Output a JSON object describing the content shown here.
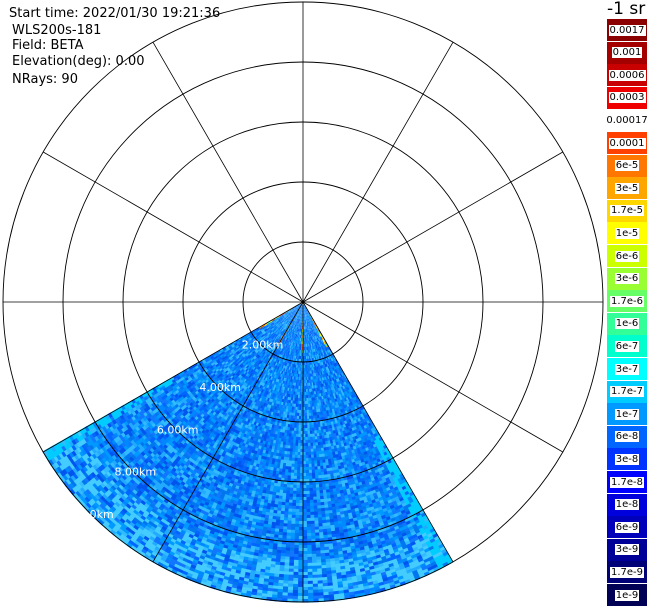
{
  "info": {
    "start_time": "Start time: 2022/01/30 19:21:36",
    "instrument": "WLS200s-181",
    "field": "Field: BETA",
    "elevation": "Elevation(deg): 0.00",
    "nrays": "NRays: 90"
  },
  "colorbar": {
    "unit": "-1 sr",
    "entries": [
      {
        "label": "0.0017",
        "color": "#8b0000",
        "text": "#ffffff"
      },
      {
        "label": "0.001",
        "color": "#a50000",
        "text": "#ffffff"
      },
      {
        "label": "0.0006",
        "color": "#c80000",
        "text": "#ffffff"
      },
      {
        "label": "0.0003",
        "color": "#ee0000",
        "text": "#ffffff"
      },
      {
        "label": "0.00017",
        "color": "#ffffff",
        "text": "#000000"
      },
      {
        "label": "0.0001",
        "color": "#ff4000",
        "text": "#ffffff"
      },
      {
        "label": "6e-5",
        "color": "#ff7700",
        "text": "#000000"
      },
      {
        "label": "3e-5",
        "color": "#ffa500",
        "text": "#000000"
      },
      {
        "label": "1.7e-5",
        "color": "#ffd700",
        "text": "#000000"
      },
      {
        "label": "1e-5",
        "color": "#ffff00",
        "text": "#000000"
      },
      {
        "label": "6e-6",
        "color": "#ccff00",
        "text": "#000000"
      },
      {
        "label": "3e-6",
        "color": "#99ff33",
        "text": "#000000"
      },
      {
        "label": "1.7e-6",
        "color": "#66ff66",
        "text": "#000000"
      },
      {
        "label": "1e-6",
        "color": "#33ff99",
        "text": "#000000"
      },
      {
        "label": "6e-7",
        "color": "#00ffcc",
        "text": "#000000"
      },
      {
        "label": "3e-7",
        "color": "#00ffff",
        "text": "#000000"
      },
      {
        "label": "1.7e-7",
        "color": "#00ccff",
        "text": "#000000"
      },
      {
        "label": "1e-7",
        "color": "#0099ff",
        "text": "#000000"
      },
      {
        "label": "6e-8",
        "color": "#0066ff",
        "text": "#ffffff"
      },
      {
        "label": "3e-8",
        "color": "#0033ff",
        "text": "#ffffff"
      },
      {
        "label": "1.7e-8",
        "color": "#0000ff",
        "text": "#ffffff"
      },
      {
        "label": "1e-8",
        "color": "#0000dd",
        "text": "#ffffff"
      },
      {
        "label": "6e-9",
        "color": "#0000bb",
        "text": "#ffffff"
      },
      {
        "label": "3e-9",
        "color": "#000099",
        "text": "#ffffff"
      },
      {
        "label": "1.7e-9",
        "color": "#000077",
        "text": "#ffffff"
      },
      {
        "label": "1e-9",
        "color": "#000055",
        "text": "#ffffff"
      }
    ]
  },
  "chart_data": {
    "type": "heatmap",
    "projection": "polar PPI",
    "max_range_km": 10,
    "range_rings_km": [
      2,
      4,
      6,
      8,
      10
    ],
    "ring_labels": [
      "2.00km",
      "4.00km",
      "6.00km",
      "8.00km",
      "10.0km"
    ],
    "spoke_step_deg": 30,
    "sector_azimuth_deg": [
      150,
      240
    ],
    "nrays": 90,
    "background_beta": "3e-8",
    "aerosol_edge_beta": "1.7e-7",
    "hotspot_beta_max": "0.0001",
    "hotspot_range_km": [
      0.0,
      1.6
    ]
  }
}
